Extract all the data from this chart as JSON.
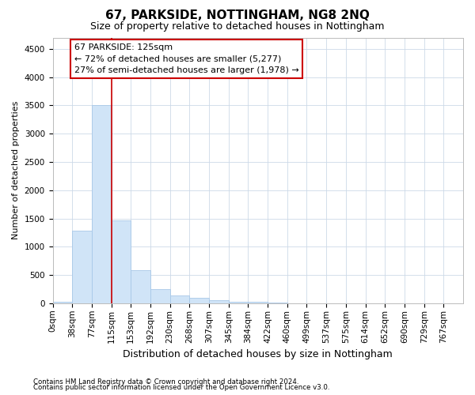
{
  "title": "67, PARKSIDE, NOTTINGHAM, NG8 2NQ",
  "subtitle": "Size of property relative to detached houses in Nottingham",
  "xlabel": "Distribution of detached houses by size in Nottingham",
  "ylabel": "Number of detached properties",
  "footnote1": "Contains HM Land Registry data © Crown copyright and database right 2024.",
  "footnote2": "Contains public sector information licensed under the Open Government Licence v3.0.",
  "bar_labels": [
    "0sqm",
    "38sqm",
    "77sqm",
    "115sqm",
    "153sqm",
    "192sqm",
    "230sqm",
    "268sqm",
    "307sqm",
    "345sqm",
    "384sqm",
    "422sqm",
    "460sqm",
    "499sqm",
    "537sqm",
    "575sqm",
    "614sqm",
    "652sqm",
    "690sqm",
    "729sqm",
    "767sqm"
  ],
  "bar_values": [
    30,
    1280,
    3500,
    1470,
    585,
    245,
    135,
    90,
    50,
    30,
    20,
    10,
    5,
    5,
    3,
    3,
    2,
    2,
    2,
    2,
    2
  ],
  "bar_color": "#d0e4f7",
  "bar_edgecolor": "#a8c8e8",
  "ylim": [
    0,
    4700
  ],
  "yticks": [
    0,
    500,
    1000,
    1500,
    2000,
    2500,
    3000,
    3500,
    4000,
    4500
  ],
  "bin_width": 38,
  "property_line_x": 115,
  "annotation_title": "67 PARKSIDE: 125sqm",
  "annotation_line1": "← 72% of detached houses are smaller (5,277)",
  "annotation_line2": "27% of semi-detached houses are larger (1,978) →",
  "annotation_box_color": "#ffffff",
  "annotation_box_edgecolor": "#cc0000",
  "red_line_color": "#cc0000",
  "background_color": "#ffffff",
  "grid_color": "#ccd9e8",
  "title_fontsize": 11,
  "subtitle_fontsize": 9,
  "xlabel_fontsize": 9,
  "ylabel_fontsize": 8,
  "tick_fontsize": 7.5,
  "annot_fontsize": 8
}
